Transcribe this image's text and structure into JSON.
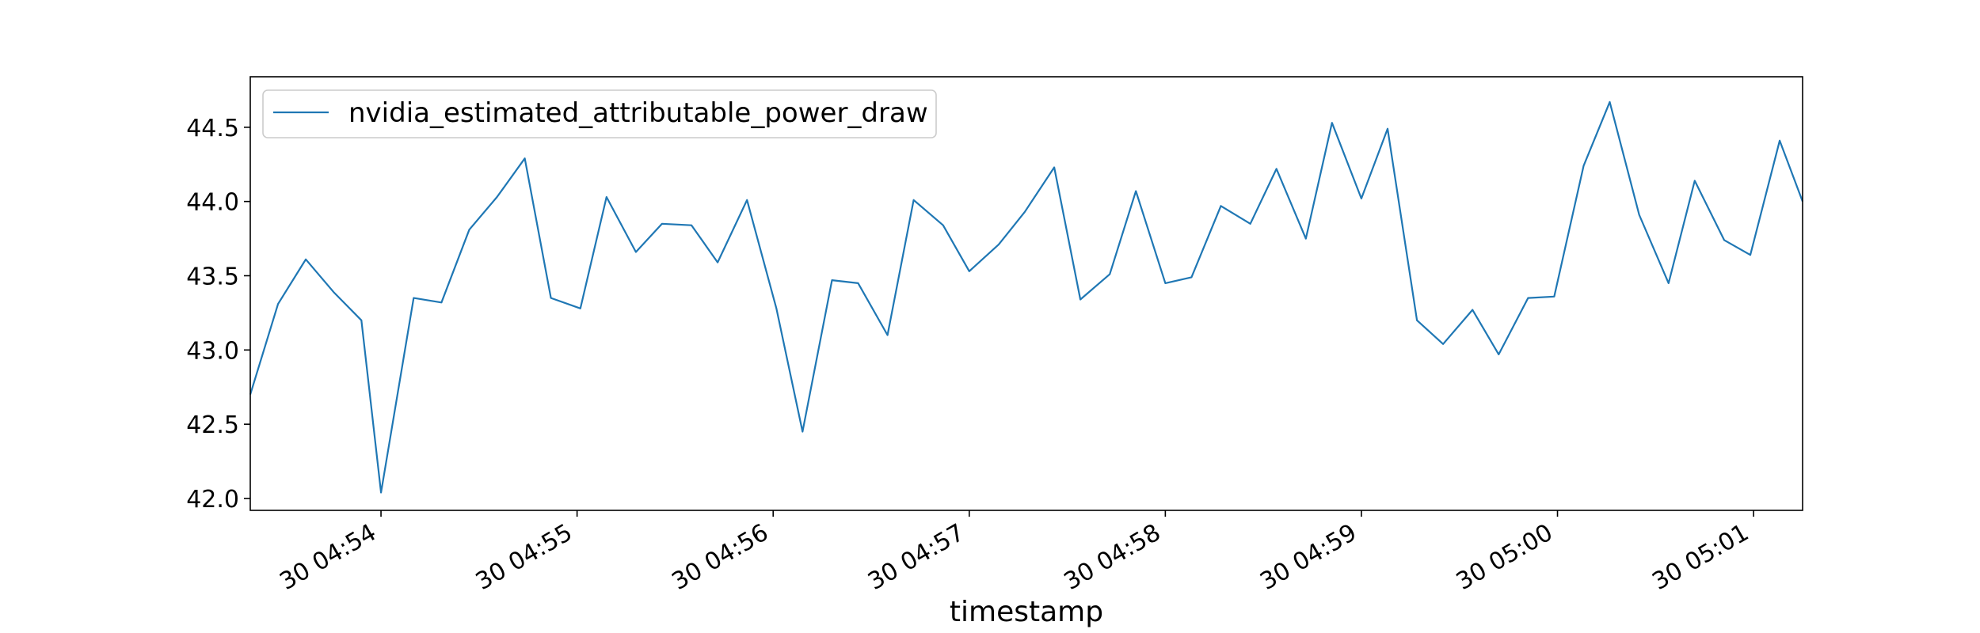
{
  "chart_data": {
    "type": "line",
    "title": "",
    "xlabel": "timestamp",
    "ylabel": "",
    "x_tick_labels": [
      "30 04:54",
      "30 04:55",
      "30 04:56",
      "30 04:57",
      "30 04:58",
      "30 04:59",
      "30 05:00",
      "30 05:01"
    ],
    "y_tick_labels": [
      "42.0",
      "42.5",
      "43.0",
      "43.5",
      "44.0",
      "44.5"
    ],
    "y_ticks": [
      42.0,
      42.5,
      43.0,
      43.5,
      44.0,
      44.5
    ],
    "ylim": [
      41.92,
      44.84
    ],
    "xlim": [
      "30 04:53:20",
      "30 05:01:15"
    ],
    "legend": {
      "position": "top-left"
    },
    "grid": false,
    "series": [
      {
        "name": "nvidia_estimated_attributable_power_draw",
        "color": "#1f77b4",
        "x": [
          "30 04:53:20",
          "30 04:53:28.5",
          "30 04:53:37",
          "30 04:53:45.5",
          "30 04:53:54",
          "30 04:54:00",
          "30 04:54:10",
          "30 04:54:18.5",
          "30 04:54:27",
          "30 04:54:35.5",
          "30 04:54:44",
          "30 04:54:52",
          "30 04:55:01",
          "30 04:55:09",
          "30 04:55:18",
          "30 04:55:26",
          "30 04:55:35",
          "30 04:55:43",
          "30 04:55:52",
          "30 04:56:01",
          "30 04:56:09",
          "30 04:56:18",
          "30 04:56:26",
          "30 04:56:35",
          "30 04:56:43",
          "30 04:56:52",
          "30 04:57:00",
          "30 04:57:09",
          "30 04:57:17",
          "30 04:57:26",
          "30 04:57:34",
          "30 04:57:43",
          "30 04:57:51",
          "30 04:58:00",
          "30 04:58:08",
          "30 04:58:17",
          "30 04:58:26",
          "30 04:58:34",
          "30 04:58:43",
          "30 04:58:51",
          "30 04:59:00",
          "30 04:59:08",
          "30 04:59:17",
          "30 04:59:25",
          "30 04:59:34",
          "30 04:59:42",
          "30 04:59:51",
          "30 04:59:59",
          "30 05:00:08",
          "30 05:00:16",
          "30 05:00:25",
          "30 05:00:34",
          "30 05:00:42",
          "30 05:00:51",
          "30 05:00:59",
          "30 05:01:08",
          "30 05:01:15"
        ],
        "values": [
          42.7,
          43.31,
          43.61,
          43.39,
          43.2,
          42.04,
          43.35,
          43.32,
          43.81,
          44.03,
          44.29,
          43.35,
          43.28,
          44.03,
          43.66,
          43.85,
          43.84,
          43.59,
          44.01,
          43.28,
          42.45,
          43.47,
          43.45,
          43.1,
          44.01,
          43.84,
          43.53,
          43.71,
          43.93,
          44.23,
          43.34,
          43.51,
          44.07,
          43.45,
          43.49,
          43.97,
          43.85,
          44.22,
          43.75,
          44.53,
          44.02,
          44.49,
          43.2,
          43.04,
          43.27,
          42.97,
          43.35,
          43.36,
          44.24,
          44.67,
          43.91,
          43.45,
          44.14,
          43.74,
          43.64,
          44.41,
          44.0
        ]
      }
    ]
  }
}
